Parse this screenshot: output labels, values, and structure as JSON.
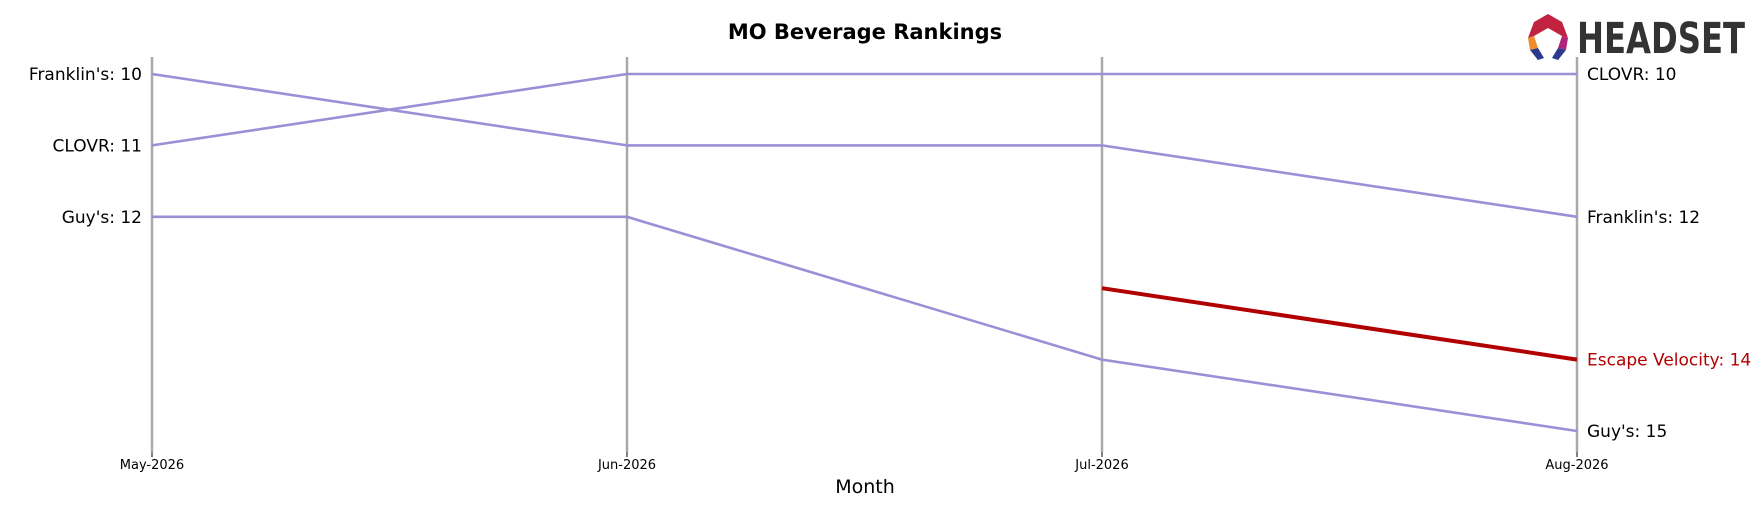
{
  "chart_data": {
    "type": "line",
    "title": "MO Beverage Rankings",
    "xlabel": "Month",
    "ylabel": "",
    "categories": [
      "May-2026",
      "Jun-2026",
      "Jul-2026",
      "Aug-2026"
    ],
    "y_inverted": true,
    "ylim": [
      10,
      15
    ],
    "grid": "vertical lines at each month",
    "series": [
      {
        "name": "Franklin's",
        "values": [
          10,
          11,
          11,
          12
        ],
        "color": "#9b8fd6",
        "highlight": false,
        "start_label": "Franklin's: 10",
        "end_label": "Franklin's: 12"
      },
      {
        "name": "CLOVR",
        "values": [
          11,
          10,
          10,
          10
        ],
        "color": "#9b8fd6",
        "highlight": false,
        "start_label": "CLOVR: 11",
        "end_label": "CLOVR: 10"
      },
      {
        "name": "Guy's",
        "values": [
          12,
          12,
          14,
          15
        ],
        "color": "#9b8fd6",
        "highlight": false,
        "start_label": "Guy's: 12",
        "end_label": "Guy's: 15"
      },
      {
        "name": "Escape Velocity",
        "values": [
          null,
          null,
          13,
          14
        ],
        "color": "#b20000",
        "highlight": true,
        "start_label": "",
        "end_label": "Escape Velocity: 14"
      }
    ]
  },
  "logo": {
    "text": "HEADSET"
  },
  "colors": {
    "axis_line": "#a9a9a9",
    "text": "#000000",
    "accent": "#b20000",
    "series": "#9b8fd6"
  }
}
